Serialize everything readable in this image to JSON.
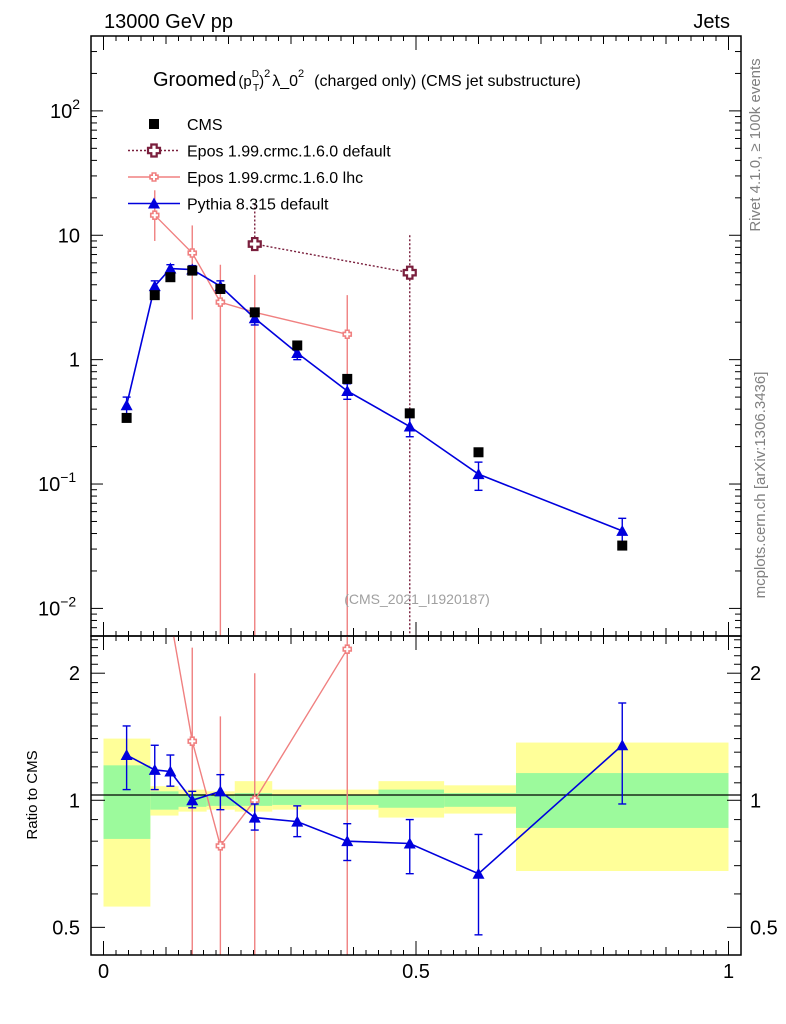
{
  "header": {
    "energy": "13000 GeV pp",
    "category": "Jets"
  },
  "title": {
    "prefix": "Groomed",
    "pt": "(p",
    "pt_sup": "D",
    "pt_sub": "T",
    "close": ")",
    "pow": "2",
    "lambda": "λ_0",
    "lambda_sup": "2",
    "suffix": "(charged only) (CMS jet substructure)"
  },
  "sidebar": {
    "rivet": "Rivet 4.1.0, ≥ 100k events",
    "mcplots": "mcplots.cern.ch [arXiv:1306.3436]"
  },
  "analysis_ref": "(CMS_2021_I1920187)",
  "ratio_ylabel": "Ratio to CMS",
  "colors": {
    "cms": "#000000",
    "epos_default": "#7a1f3d",
    "epos_lhc": "#f08080",
    "pythia": "#0000dd",
    "band_inner": "#9cfa9c",
    "band_outer": "#ffff99"
  },
  "chart_data": [
    {
      "type": "scatter",
      "scale": "log",
      "xlim": [
        -0.02,
        1.02
      ],
      "ylim": [
        0.006,
        400
      ],
      "x_ticks": [
        {
          "v": 0,
          "label": "0"
        },
        {
          "v": 0.5,
          "label": "0.5"
        },
        {
          "v": 1,
          "label": "1"
        }
      ],
      "y_ticks": [
        {
          "v": 0.01,
          "label": "10",
          "sup": "−2"
        },
        {
          "v": 0.1,
          "label": "10",
          "sup": "−1"
        },
        {
          "v": 1,
          "label": "1",
          "sup": ""
        },
        {
          "v": 10,
          "label": "10",
          "sup": ""
        },
        {
          "v": 100,
          "label": "10",
          "sup": "2"
        }
      ],
      "legend": [
        {
          "name": "CMS",
          "key": "cms"
        },
        {
          "name": "Epos 1.99.crmc.1.6.0 default",
          "key": "epos_default"
        },
        {
          "name": "Epos 1.99.crmc.1.6.0 lhc",
          "key": "epos_lhc"
        },
        {
          "name": "Pythia 8.315 default",
          "key": "pythia"
        }
      ],
      "series": {
        "cms": {
          "x": [
            0.037,
            0.082,
            0.107,
            0.142,
            0.187,
            0.242,
            0.31,
            0.39,
            0.49,
            0.6,
            0.83
          ],
          "y": [
            0.34,
            3.3,
            4.6,
            5.2,
            3.7,
            2.4,
            1.3,
            0.7,
            0.37,
            0.18,
            0.032
          ]
        },
        "epos_default": {
          "x": [
            0.242,
            0.49
          ],
          "y": [
            8.5,
            5.0
          ],
          "err_lo": [
            null,
            0.001
          ],
          "err_hi": [
            18,
            10
          ]
        },
        "epos_lhc": {
          "x": [
            0.082,
            0.142,
            0.187,
            0.242,
            0.39
          ],
          "y": [
            14.5,
            7.2,
            2.9,
            2.4,
            1.6
          ],
          "err_lo": [
            9,
            2.1,
            0.001,
            0.001,
            0.001
          ],
          "err_hi": [
            23,
            12,
            5.8,
            4.8,
            3.3
          ]
        },
        "pythia": {
          "x": [
            0.037,
            0.082,
            0.107,
            0.142,
            0.187,
            0.242,
            0.31,
            0.39,
            0.49,
            0.6,
            0.83
          ],
          "y": [
            0.43,
            3.9,
            5.4,
            5.3,
            3.9,
            2.15,
            1.13,
            0.56,
            0.29,
            0.12,
            0.042
          ],
          "err_lo": [
            0.36,
            3.5,
            5.0,
            4.9,
            3.5,
            1.9,
            1.0,
            0.48,
            0.24,
            0.089,
            0.031
          ],
          "err_hi": [
            0.5,
            4.3,
            5.8,
            5.7,
            4.3,
            2.4,
            1.25,
            0.64,
            0.35,
            0.15,
            0.053
          ]
        }
      }
    },
    {
      "type": "scatter",
      "scale": "log",
      "ylabel": "Ratio to CMS",
      "xlim": [
        -0.02,
        1.02
      ],
      "ylim": [
        0.43,
        2.45
      ],
      "x_ticks": [
        {
          "v": 0,
          "label": "0"
        },
        {
          "v": 0.5,
          "label": "0.5"
        },
        {
          "v": 1,
          "label": "1"
        }
      ],
      "y_ticks": [
        {
          "v": 0.5,
          "label": "0.5"
        },
        {
          "v": 1,
          "label": "1"
        },
        {
          "v": 2,
          "label": "2"
        }
      ],
      "bands": [
        {
          "x0": 0.0,
          "x1": 0.075,
          "in_lo": 0.81,
          "in_hi": 1.21,
          "out_lo": 0.56,
          "out_hi": 1.4
        },
        {
          "x0": 0.075,
          "x1": 0.12,
          "in_lo": 0.95,
          "in_hi": 1.05,
          "out_lo": 0.92,
          "out_hi": 1.08
        },
        {
          "x0": 0.12,
          "x1": 0.165,
          "in_lo": 0.965,
          "in_hi": 1.035,
          "out_lo": 0.94,
          "out_hi": 1.06
        },
        {
          "x0": 0.165,
          "x1": 0.21,
          "in_lo": 0.97,
          "in_hi": 1.03,
          "out_lo": 0.95,
          "out_hi": 1.05
        },
        {
          "x0": 0.21,
          "x1": 0.27,
          "in_lo": 0.97,
          "in_hi": 1.04,
          "out_lo": 0.94,
          "out_hi": 1.11
        },
        {
          "x0": 0.27,
          "x1": 0.44,
          "in_lo": 0.975,
          "in_hi": 1.03,
          "out_lo": 0.95,
          "out_hi": 1.06
        },
        {
          "x0": 0.44,
          "x1": 0.545,
          "in_lo": 0.96,
          "in_hi": 1.06,
          "out_lo": 0.91,
          "out_hi": 1.11
        },
        {
          "x0": 0.545,
          "x1": 0.66,
          "in_lo": 0.965,
          "in_hi": 1.04,
          "out_lo": 0.93,
          "out_hi": 1.085
        },
        {
          "x0": 0.66,
          "x1": 1.0,
          "in_lo": 0.86,
          "in_hi": 1.16,
          "out_lo": 0.68,
          "out_hi": 1.37
        }
      ],
      "series": {
        "epos_lhc": {
          "x": [
            0.082,
            0.142,
            0.187,
            0.242,
            0.39
          ],
          "y": [
            4.39,
            1.38,
            0.78,
            1.0,
            2.28
          ],
          "err_lo": [
            null,
            0.3,
            0.001,
            0.001,
            0.001
          ],
          "err_hi": [
            null,
            2.3,
            1.58,
            2.0,
            2.6
          ]
        },
        "pythia": {
          "x": [
            0.037,
            0.082,
            0.107,
            0.142,
            0.187,
            0.242,
            0.31,
            0.39,
            0.49,
            0.6,
            0.83
          ],
          "y": [
            1.28,
            1.18,
            1.17,
            1.0,
            1.05,
            0.91,
            0.89,
            0.8,
            0.79,
            0.67,
            1.35
          ],
          "err_lo": [
            1.06,
            1.06,
            1.08,
            0.96,
            0.95,
            0.85,
            0.82,
            0.72,
            0.67,
            0.48,
            0.98
          ],
          "err_hi": [
            1.5,
            1.35,
            1.28,
            1.05,
            1.15,
            0.98,
            0.97,
            0.88,
            0.9,
            0.83,
            1.7
          ]
        }
      }
    }
  ]
}
